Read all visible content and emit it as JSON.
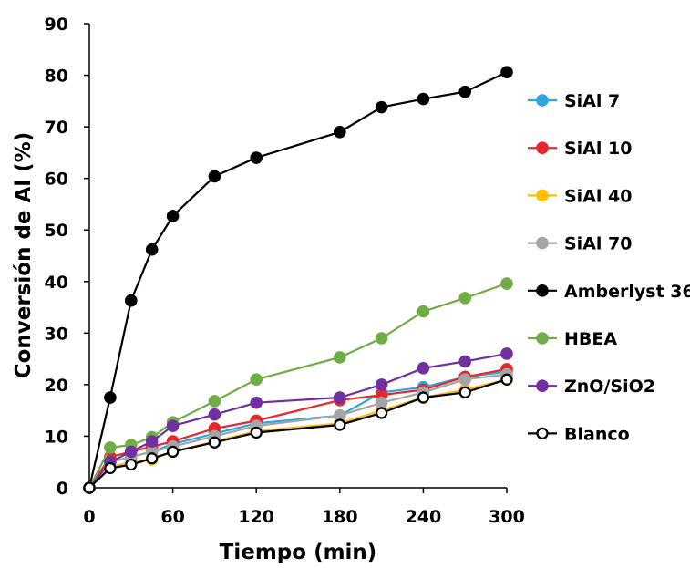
{
  "chart_data": {
    "type": "line",
    "title": "",
    "xlabel": "Tiempo (min)",
    "ylabel": "Conversión de Al (%)",
    "xlim": [
      0,
      300
    ],
    "ylim": [
      0,
      90
    ],
    "xticks": [
      0,
      60,
      120,
      180,
      240,
      300
    ],
    "yticks": [
      0,
      10,
      20,
      30,
      40,
      50,
      60,
      70,
      80,
      90
    ],
    "grid": false,
    "legend_position": "right",
    "series": [
      {
        "name": "SiAl 7",
        "color": "#2ea7e0",
        "marker": "filled-circle",
        "points": [
          [
            0,
            0
          ],
          [
            15,
            5
          ],
          [
            30,
            6
          ],
          [
            45,
            7
          ],
          [
            60,
            8.5
          ],
          [
            90,
            10.5
          ],
          [
            120,
            12.5
          ],
          [
            180,
            14
          ],
          [
            210,
            18.5
          ],
          [
            240,
            19.5
          ],
          [
            270,
            21.5
          ],
          [
            300,
            22.5
          ]
        ]
      },
      {
        "name": "SiAl 10",
        "color": "#e8272a",
        "marker": "filled-circle",
        "points": [
          [
            0,
            0
          ],
          [
            15,
            6
          ],
          [
            30,
            7
          ],
          [
            45,
            8
          ],
          [
            60,
            9
          ],
          [
            90,
            11.5
          ],
          [
            120,
            13
          ],
          [
            180,
            17
          ],
          [
            210,
            18
          ],
          [
            240,
            19
          ],
          [
            270,
            21.5
          ],
          [
            300,
            23
          ]
        ]
      },
      {
        "name": "SiAl 40",
        "color": "#ffc000",
        "marker": "filled-circle",
        "points": [
          [
            0,
            0
          ],
          [
            15,
            4
          ],
          [
            30,
            5
          ],
          [
            45,
            5.5
          ],
          [
            60,
            7
          ],
          [
            90,
            9
          ],
          [
            120,
            11
          ],
          [
            180,
            12.5
          ],
          [
            210,
            15
          ],
          [
            240,
            17.5
          ],
          [
            270,
            19
          ],
          [
            300,
            21
          ]
        ]
      },
      {
        "name": "SiAl 70",
        "color": "#a5a5a5",
        "marker": "filled-circle",
        "points": [
          [
            0,
            0
          ],
          [
            15,
            5
          ],
          [
            30,
            6
          ],
          [
            45,
            7
          ],
          [
            60,
            8
          ],
          [
            90,
            10
          ],
          [
            120,
            12
          ],
          [
            180,
            14
          ],
          [
            210,
            16.5
          ],
          [
            240,
            18.5
          ],
          [
            270,
            21
          ],
          [
            300,
            22
          ]
        ]
      },
      {
        "name": "Amberlyst 36",
        "color": "#000000",
        "marker": "filled-circle",
        "points": [
          [
            0,
            0
          ],
          [
            15,
            17.5
          ],
          [
            30,
            36.3
          ],
          [
            45,
            46.2
          ],
          [
            60,
            52.7
          ],
          [
            90,
            60.4
          ],
          [
            120,
            64
          ],
          [
            180,
            69
          ],
          [
            210,
            73.8
          ],
          [
            240,
            75.4
          ],
          [
            270,
            76.8
          ],
          [
            300,
            80.6
          ]
        ]
      },
      {
        "name": "HBEA",
        "color": "#70ad47",
        "marker": "filled-circle",
        "points": [
          [
            0,
            0
          ],
          [
            15,
            7.8
          ],
          [
            30,
            8.3
          ],
          [
            45,
            9.8
          ],
          [
            60,
            12.7
          ],
          [
            90,
            16.8
          ],
          [
            120,
            21
          ],
          [
            180,
            25.3
          ],
          [
            210,
            29
          ],
          [
            240,
            34.2
          ],
          [
            270,
            36.8
          ],
          [
            300,
            39.6
          ]
        ]
      },
      {
        "name": "ZnO/SiO2",
        "color": "#7030a0",
        "marker": "filled-circle",
        "points": [
          [
            0,
            0
          ],
          [
            15,
            5
          ],
          [
            30,
            7
          ],
          [
            45,
            9
          ],
          [
            60,
            12
          ],
          [
            90,
            14.2
          ],
          [
            120,
            16.5
          ],
          [
            180,
            17.5
          ],
          [
            210,
            20
          ],
          [
            240,
            23.2
          ],
          [
            270,
            24.5
          ],
          [
            300,
            26
          ]
        ]
      },
      {
        "name": "Blanco",
        "color": "#000000",
        "marker": "open-circle",
        "points": [
          [
            0,
            0
          ],
          [
            15,
            3.8
          ],
          [
            30,
            4.5
          ],
          [
            45,
            5.7
          ],
          [
            60,
            7
          ],
          [
            90,
            8.8
          ],
          [
            120,
            10.7
          ],
          [
            180,
            12.2
          ],
          [
            210,
            14.5
          ],
          [
            240,
            17.5
          ],
          [
            270,
            18.5
          ],
          [
            300,
            21
          ]
        ]
      }
    ]
  }
}
